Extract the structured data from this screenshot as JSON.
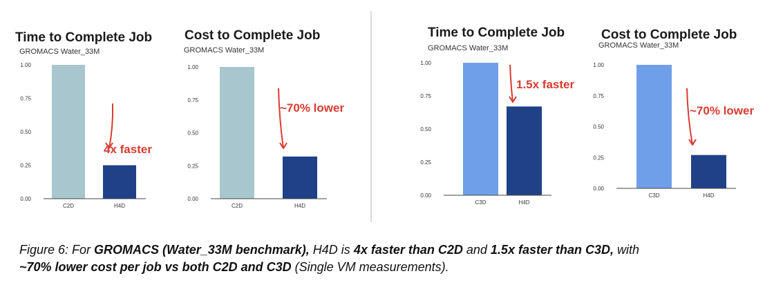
{
  "colors": {
    "c2d": "#a7c6cd",
    "c3d": "#6f9fe8",
    "h4d": "#1e4188",
    "annotation": "#d83b30",
    "baseline": "#444444"
  },
  "chart_data": [
    {
      "type": "bar",
      "title": "Time to Complete Job",
      "subtitle": "GROMACS Water_33M",
      "categories": [
        "C2D",
        "H4D"
      ],
      "values": [
        1.0,
        0.25
      ],
      "bar_colors": [
        "#a7c6cd",
        "#1e4188"
      ],
      "ylim": [
        0,
        1.0
      ],
      "yticks": [
        "0.00",
        "0.25",
        "0.50",
        "0.75",
        "1.00"
      ],
      "annotation": "4x faster"
    },
    {
      "type": "bar",
      "title": "Cost to Complete Job",
      "subtitle": "GROMACS Water_33M",
      "categories": [
        "C2D",
        "H4D"
      ],
      "values": [
        1.0,
        0.32
      ],
      "bar_colors": [
        "#a7c6cd",
        "#1e4188"
      ],
      "ylim": [
        0,
        1.0
      ],
      "yticks": [
        "0.00",
        "0.25",
        "0.50",
        "0.75",
        "1.00"
      ],
      "annotation": "~70% lower"
    },
    {
      "type": "bar",
      "title": "Time to Complete Job",
      "subtitle": "GROMACS Water_33M",
      "categories": [
        "C3D",
        "H4D"
      ],
      "values": [
        1.0,
        0.67
      ],
      "bar_colors": [
        "#6f9fe8",
        "#1e4188"
      ],
      "ylim": [
        0,
        1.0
      ],
      "yticks": [
        "0.00",
        "0.25",
        "0.50",
        "0.75",
        "1.00"
      ],
      "annotation": "1.5x faster"
    },
    {
      "type": "bar",
      "title": "Cost to Complete Job",
      "subtitle": "GROMACS Water_33M",
      "categories": [
        "C3D",
        "H4D"
      ],
      "values": [
        1.0,
        0.27
      ],
      "bar_colors": [
        "#6f9fe8",
        "#1e4188"
      ],
      "ylim": [
        0,
        1.0
      ],
      "yticks": [
        "0.00",
        "0.25",
        "0.50",
        "0.75",
        "1.00"
      ],
      "annotation": "~70% lower"
    }
  ],
  "caption": {
    "p1": "Figure 6: For ",
    "b1": "GROMACS (Water_33M benchmark),",
    "p2": " H4D is ",
    "b2": "4x faster than C2D",
    "p3": " and ",
    "b3": "1.5x faster than C3D,",
    "p4": " with ",
    "b4": "~70% lower cost per job vs both C2D and C3D",
    "p5": " (Single VM measurements)."
  }
}
